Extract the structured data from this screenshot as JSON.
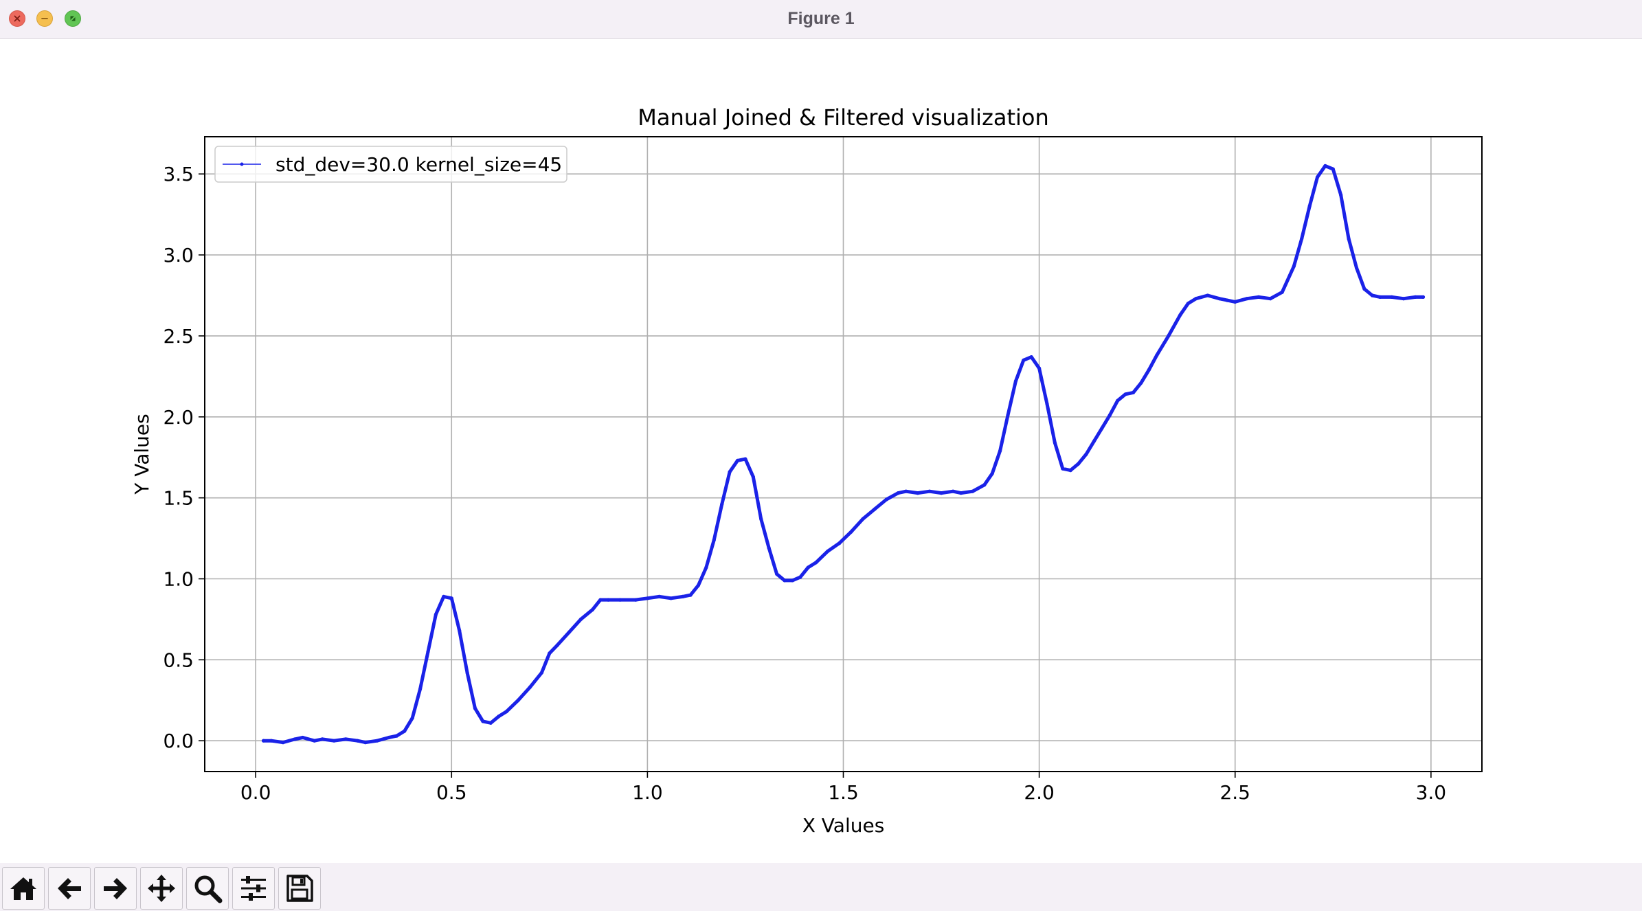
{
  "window": {
    "title": "Figure 1"
  },
  "toolbar": {
    "buttons": [
      {
        "name": "home-button",
        "icon": "home-icon"
      },
      {
        "name": "back-button",
        "icon": "arrow-left-icon"
      },
      {
        "name": "forward-button",
        "icon": "arrow-right-icon"
      },
      {
        "name": "pan-button",
        "icon": "move-icon"
      },
      {
        "name": "zoom-button",
        "icon": "magnifier-icon"
      },
      {
        "name": "configure-subplots-button",
        "icon": "sliders-icon"
      },
      {
        "name": "save-button",
        "icon": "floppy-disk-icon"
      }
    ]
  },
  "chart_data": {
    "type": "line",
    "title": "Manual Joined & Filtered visualization",
    "xlabel": "X Values",
    "ylabel": "Y Values",
    "xlim": [
      -0.13,
      3.13
    ],
    "ylim": [
      -0.19,
      3.73
    ],
    "xticks": [
      0.0,
      0.5,
      1.0,
      1.5,
      2.0,
      2.5,
      3.0
    ],
    "xtick_labels": [
      "0.0",
      "0.5",
      "1.0",
      "1.5",
      "2.0",
      "2.5",
      "3.0"
    ],
    "yticks": [
      0.0,
      0.5,
      1.0,
      1.5,
      2.0,
      2.5,
      3.0,
      3.5
    ],
    "ytick_labels": [
      "0.0",
      "0.5",
      "1.0",
      "1.5",
      "2.0",
      "2.5",
      "3.0",
      "3.5"
    ],
    "grid": true,
    "legend": {
      "position": "top-left",
      "label": "std_dev=30.0 kernel_size=45"
    },
    "series": [
      {
        "name": "std_dev=30.0 kernel_size=45",
        "color": "#1a22e8",
        "x": [
          0.02,
          0.04,
          0.07,
          0.1,
          0.12,
          0.15,
          0.17,
          0.2,
          0.23,
          0.26,
          0.28,
          0.31,
          0.34,
          0.36,
          0.38,
          0.4,
          0.42,
          0.44,
          0.46,
          0.48,
          0.5,
          0.52,
          0.54,
          0.56,
          0.58,
          0.6,
          0.62,
          0.64,
          0.67,
          0.7,
          0.73,
          0.75,
          0.77,
          0.8,
          0.83,
          0.86,
          0.88,
          0.9,
          0.93,
          0.97,
          1.0,
          1.03,
          1.06,
          1.09,
          1.11,
          1.13,
          1.15,
          1.17,
          1.19,
          1.21,
          1.23,
          1.25,
          1.27,
          1.29,
          1.31,
          1.33,
          1.35,
          1.37,
          1.39,
          1.41,
          1.43,
          1.46,
          1.49,
          1.52,
          1.55,
          1.58,
          1.61,
          1.64,
          1.66,
          1.69,
          1.72,
          1.75,
          1.78,
          1.8,
          1.83,
          1.86,
          1.88,
          1.9,
          1.92,
          1.94,
          1.96,
          1.98,
          2.0,
          2.02,
          2.04,
          2.06,
          2.08,
          2.1,
          2.12,
          2.14,
          2.16,
          2.18,
          2.2,
          2.22,
          2.24,
          2.26,
          2.28,
          2.3,
          2.33,
          2.36,
          2.38,
          2.4,
          2.43,
          2.46,
          2.48,
          2.5,
          2.53,
          2.56,
          2.59,
          2.62,
          2.65,
          2.67,
          2.69,
          2.71,
          2.73,
          2.75,
          2.77,
          2.79,
          2.81,
          2.83,
          2.85,
          2.87,
          2.9,
          2.93,
          2.96,
          2.98
        ],
        "y": [
          0.0,
          0.0,
          -0.01,
          0.01,
          0.02,
          0.0,
          0.01,
          0.0,
          0.01,
          0.0,
          -0.01,
          0.0,
          0.02,
          0.03,
          0.06,
          0.14,
          0.32,
          0.55,
          0.78,
          0.89,
          0.88,
          0.68,
          0.42,
          0.2,
          0.12,
          0.11,
          0.15,
          0.18,
          0.25,
          0.33,
          0.42,
          0.54,
          0.59,
          0.67,
          0.75,
          0.81,
          0.87,
          0.87,
          0.87,
          0.87,
          0.88,
          0.89,
          0.88,
          0.89,
          0.9,
          0.96,
          1.07,
          1.24,
          1.46,
          1.66,
          1.73,
          1.74,
          1.63,
          1.37,
          1.19,
          1.03,
          0.99,
          0.99,
          1.01,
          1.07,
          1.1,
          1.17,
          1.22,
          1.29,
          1.37,
          1.43,
          1.49,
          1.53,
          1.54,
          1.53,
          1.54,
          1.53,
          1.54,
          1.53,
          1.54,
          1.58,
          1.65,
          1.79,
          2.01,
          2.22,
          2.35,
          2.37,
          2.3,
          2.08,
          1.84,
          1.68,
          1.67,
          1.71,
          1.77,
          1.85,
          1.93,
          2.01,
          2.1,
          2.14,
          2.15,
          2.21,
          2.29,
          2.38,
          2.5,
          2.63,
          2.7,
          2.73,
          2.75,
          2.73,
          2.72,
          2.71,
          2.73,
          2.74,
          2.73,
          2.77,
          2.93,
          3.1,
          3.3,
          3.48,
          3.55,
          3.53,
          3.37,
          3.1,
          2.92,
          2.79,
          2.75,
          2.74,
          2.74,
          2.73,
          2.74,
          2.74
        ]
      }
    ]
  }
}
